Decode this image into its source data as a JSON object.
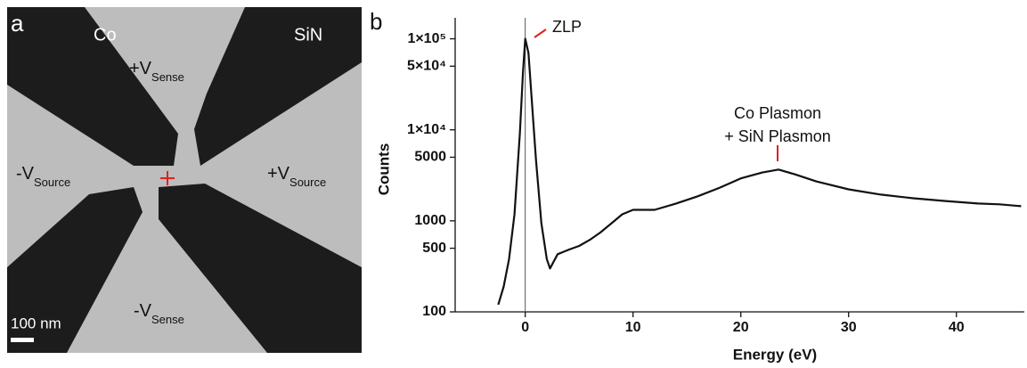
{
  "panel_a": {
    "letter": "a",
    "labels": [
      "Co",
      "SiN"
    ],
    "terminals": [
      {
        "main": "+V",
        "sub": "Sense"
      },
      {
        "main": "-V",
        "sub": "Source"
      },
      {
        "main": "+V",
        "sub": "Source"
      },
      {
        "main": "-V",
        "sub": "Sense"
      }
    ],
    "scale_bar": "100 nm"
  },
  "chart_data": {
    "type": "line",
    "letter": "b",
    "x_label": "Energy (eV)",
    "y_label": "Counts",
    "log_y": true,
    "xlim": [
      -6.5,
      46.3
    ],
    "ylim": [
      100,
      170000
    ],
    "xticks": [
      0,
      10,
      20,
      30,
      40
    ],
    "yticks": [
      100,
      500,
      1000,
      5000,
      {
        "value": 10000,
        "label": "1×10⁴"
      },
      {
        "value": 50000,
        "label": "5×10⁴"
      },
      {
        "value": 100000,
        "label": "1×10⁵"
      }
    ],
    "vlines": [
      0
    ],
    "annotations": [
      {
        "lines": [
          "ZLP"
        ]
      },
      {
        "lines": [
          "Co Plasmon",
          "+ SiN Plasmon"
        ]
      }
    ],
    "series": [
      {
        "color": "#111111",
        "x": [
          -2.5,
          -2,
          -1.5,
          -1,
          -0.5,
          -0.2,
          0,
          0.3,
          0.6,
          1,
          1.5,
          2,
          2.3,
          3,
          4,
          5,
          6,
          7,
          8,
          9,
          10,
          12,
          14,
          16,
          18,
          20,
          22,
          23.5,
          25,
          27,
          30,
          33,
          36,
          39,
          42,
          44,
          46
        ],
        "values": [
          120,
          190,
          380,
          1180,
          9000,
          44000,
          100000,
          70000,
          22000,
          4600,
          940,
          380,
          300,
          430,
          480,
          530,
          620,
          750,
          940,
          1180,
          1320,
          1320,
          1550,
          1860,
          2300,
          2930,
          3400,
          3660,
          3250,
          2710,
          2220,
          1940,
          1770,
          1650,
          1550,
          1520,
          1450
        ]
      }
    ]
  }
}
